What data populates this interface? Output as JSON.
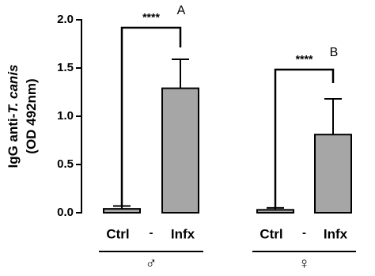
{
  "chart_data": {
    "type": "bar",
    "y_label_lines": [
      [
        "IgG anti-",
        "T. canis"
      ],
      [
        "(OD 492nm)"
      ]
    ],
    "categories": [
      "Ctrl",
      "Infx",
      "Ctrl",
      "Infx"
    ],
    "separators": [
      "-",
      "-"
    ],
    "groups": [
      "♂",
      "♀"
    ],
    "series": [
      {
        "color": "#a6a6a6",
        "values": [
          0.04,
          1.29,
          0.03,
          0.81
        ],
        "errors": [
          0.03,
          0.3,
          0.02,
          0.37
        ]
      }
    ],
    "annotations": [
      "****",
      "A",
      "****",
      "B"
    ],
    "ylim": [
      0,
      2
    ],
    "yticks": [
      {
        "value": 0,
        "label": "0.0"
      },
      {
        "value": 0.5,
        "label": "0.5"
      },
      {
        "value": 1,
        "label": "1.0"
      },
      {
        "value": 1.5,
        "label": "1.5"
      },
      {
        "value": 2,
        "label": "2.0"
      }
    ]
  }
}
